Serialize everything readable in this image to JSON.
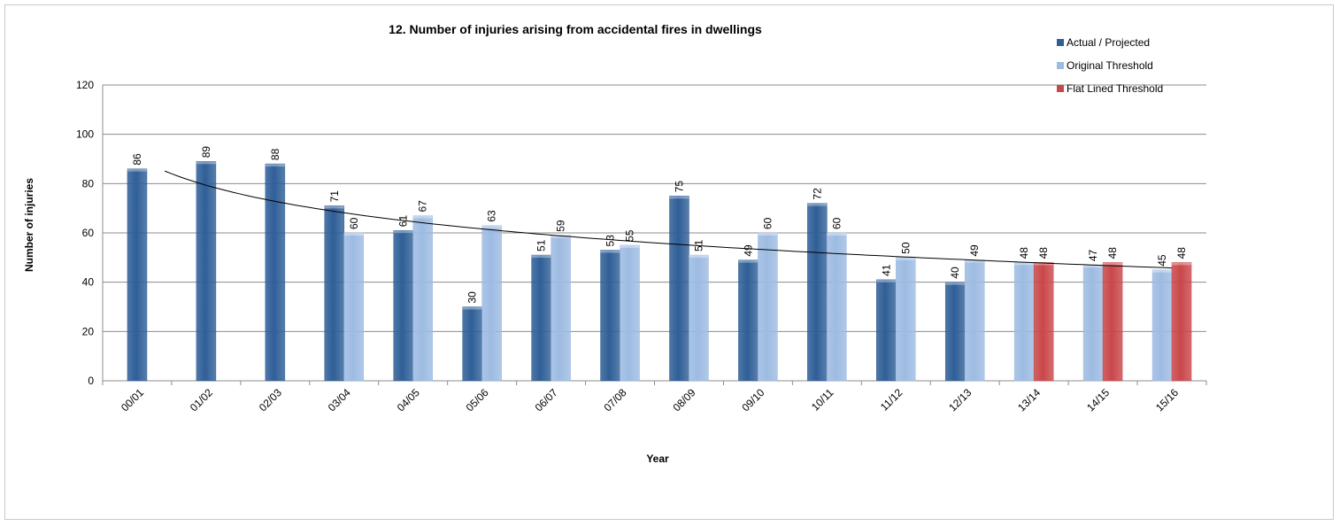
{
  "chart_data": {
    "type": "bar",
    "title": "12. Number of injuries arising from accidental fires in dwellings",
    "xlabel": "Year",
    "ylabel": "Number of injuries",
    "ylim": [
      0,
      120
    ],
    "yticks": [
      0,
      20,
      40,
      60,
      80,
      100,
      120
    ],
    "grid": true,
    "legend_position": "top-right",
    "categories": [
      "00/01",
      "01/02",
      "02/03",
      "03/04",
      "04/05",
      "05/06",
      "06/07",
      "07/08",
      "08/09",
      "09/10",
      "10/11",
      "11/12",
      "12/13",
      "13/14",
      "14/15",
      "15/16"
    ],
    "series": [
      {
        "name": "Actual / Projected",
        "color": "#2f5f97",
        "values": [
          86,
          89,
          88,
          71,
          61,
          30,
          51,
          53,
          75,
          49,
          72,
          41,
          40,
          null,
          null,
          null
        ]
      },
      {
        "name": "Original Threshold",
        "color": "#9dbbe2",
        "values": [
          null,
          null,
          null,
          60,
          67,
          63,
          59,
          55,
          51,
          60,
          60,
          50,
          49,
          48,
          47,
          45
        ]
      },
      {
        "name": "Flat Lined Threshold",
        "color": "#c9474a",
        "values": [
          null,
          null,
          null,
          null,
          null,
          null,
          null,
          null,
          null,
          null,
          null,
          null,
          null,
          48,
          48,
          48
        ]
      }
    ],
    "trendline": {
      "type": "logarithmic",
      "color": "#000000"
    }
  }
}
